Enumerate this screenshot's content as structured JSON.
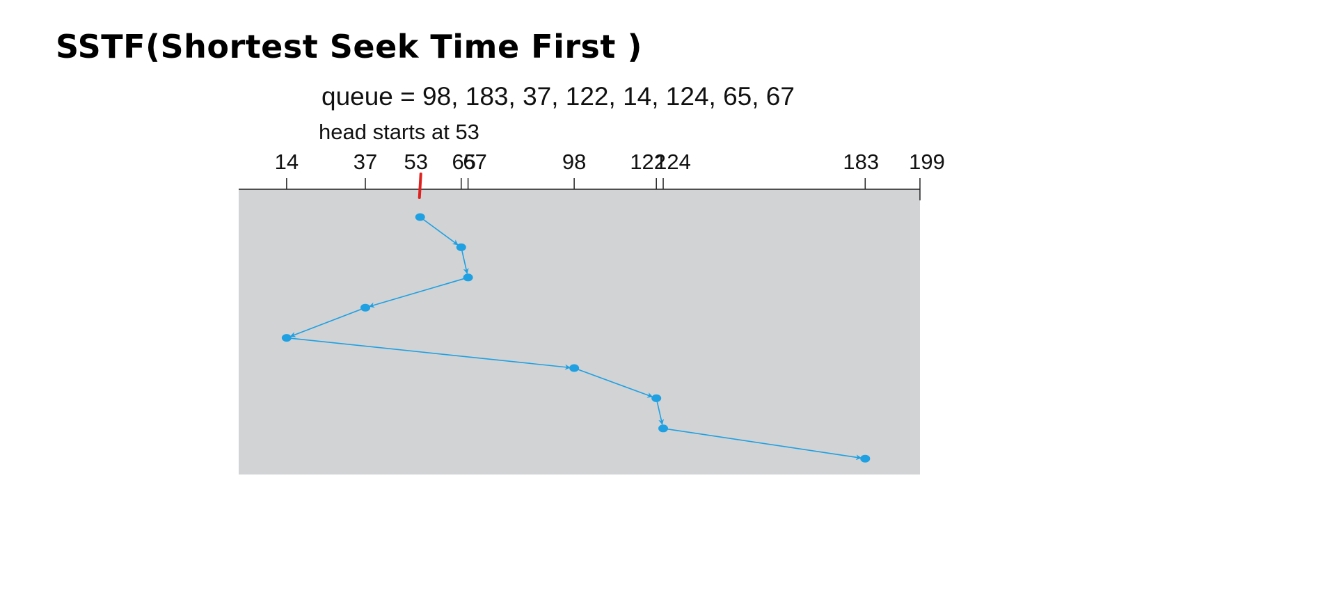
{
  "title": "SSTF(Shortest Seek Time First )",
  "queue_text": "queue = 98, 183, 37, 122, 14, 124, 65, 67",
  "head_text": "head starts at 53",
  "colors": {
    "plot_background": "#d1d3d5",
    "path": "#1ea0e2",
    "head_marker": "#e0201c",
    "axis": "#222222"
  },
  "axis": {
    "min": 0,
    "max": 199,
    "ticks": [
      {
        "value": 14,
        "label": "14"
      },
      {
        "value": 37,
        "label": "37"
      },
      {
        "value": 53,
        "label": "53"
      },
      {
        "value": 65,
        "label": "65"
      },
      {
        "value": 67,
        "label": "67"
      },
      {
        "value": 98,
        "label": "98"
      },
      {
        "value": 122,
        "label": "122"
      },
      {
        "value": 124,
        "label": "124"
      },
      {
        "value": 183,
        "label": "183"
      },
      {
        "value": 199,
        "label": "199"
      }
    ]
  },
  "head_start": 53,
  "service_order": [
    53,
    65,
    67,
    37,
    14,
    98,
    122,
    124,
    183
  ]
}
